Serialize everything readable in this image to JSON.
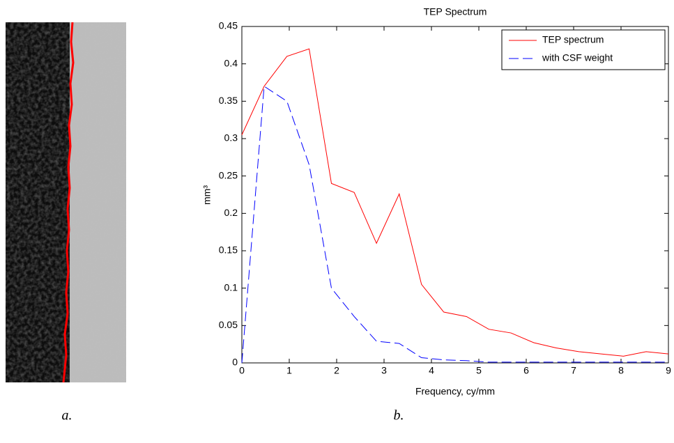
{
  "figure": {
    "captions": [
      "a.",
      "b."
    ]
  },
  "chart_data": {
    "type": "line",
    "title": "TEP Spectrum",
    "xlabel": "Frequency, cy/mm",
    "ylabel": "mm³",
    "x": [
      0,
      0.47,
      0.95,
      1.42,
      1.89,
      2.37,
      2.84,
      3.32,
      3.79,
      4.26,
      4.74,
      5.21,
      5.68,
      6.16,
      6.63,
      7.11,
      7.58,
      8.05,
      8.53,
      9
    ],
    "series": [
      {
        "name": "TEP spectrum",
        "color": "#ff0000",
        "style": "solid",
        "values": [
          0.305,
          0.37,
          0.41,
          0.42,
          0.24,
          0.228,
          0.16,
          0.226,
          0.105,
          0.068,
          0.062,
          0.045,
          0.04,
          0.027,
          0.02,
          0.015,
          0.012,
          0.009,
          0.015,
          0.012
        ]
      },
      {
        "name": "with CSF weight",
        "color": "#0000ff",
        "style": "dashed",
        "values": [
          0,
          0.37,
          0.35,
          0.265,
          0.1,
          0.062,
          0.029,
          0.026,
          0.007,
          0.004,
          0.003,
          0.001,
          0.001,
          0.001,
          0.001,
          0.001,
          0.001,
          0.001,
          0.001,
          0.001
        ]
      }
    ],
    "xlim": [
      0,
      9
    ],
    "xticks": [
      0,
      1,
      2,
      3,
      4,
      5,
      6,
      7,
      8,
      9
    ],
    "ylim": [
      0,
      0.45
    ],
    "yticks": [
      0,
      0.05,
      0.1,
      0.15,
      0.2,
      0.25,
      0.3,
      0.35,
      0.4,
      0.45
    ],
    "grid": false,
    "legend": "top-right"
  }
}
